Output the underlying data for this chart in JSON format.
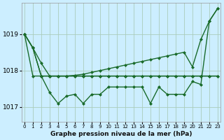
{
  "title": "Graphe pression niveau de la mer (hPa)",
  "background_color": "#cceeff",
  "grid_color": "#aaccbb",
  "line_color": "#1a6b2a",
  "x_labels": [
    "0",
    "1",
    "2",
    "3",
    "4",
    "5",
    "6",
    "7",
    "8",
    "9",
    "10",
    "11",
    "12",
    "13",
    "14",
    "15",
    "16",
    "17",
    "18",
    "19",
    "20",
    "21",
    "22",
    "23"
  ],
  "ylim": [
    1016.6,
    1019.85
  ],
  "yticks": [
    1017,
    1018,
    1019
  ],
  "marker": "D",
  "markersize": 2.0,
  "linewidth": 1.0,
  "s1": [
    1019.0,
    1018.62,
    1018.2,
    1017.85,
    1017.85,
    1017.85,
    1017.87,
    1017.9,
    1017.95,
    1018.0,
    1018.05,
    1018.1,
    1018.15,
    1018.2,
    1018.25,
    1018.3,
    1018.35,
    1018.4,
    1018.45,
    1018.5,
    1018.1,
    1018.85,
    1019.35,
    1019.7
  ],
  "s2": [
    1019.0,
    1018.62,
    1017.85,
    1017.85,
    1017.85,
    1017.85,
    1017.85,
    1017.85,
    1017.85,
    1017.85,
    1017.85,
    1017.85,
    1017.85,
    1017.85,
    1017.85,
    1017.85,
    1017.85,
    1017.85,
    1017.85,
    1017.85,
    1017.85,
    1017.85,
    1017.85,
    1017.85
  ],
  "s3": [
    1019.0,
    1018.62,
    1017.85,
    1017.4,
    1017.1,
    1017.3,
    1017.35,
    1017.1,
    1017.35,
    1017.35,
    1017.55,
    1017.55,
    1017.55,
    1017.55,
    1017.55,
    1017.1,
    1017.55,
    1017.35,
    1017.35,
    1017.35,
    1017.7,
    1017.62,
    1019.35,
    1019.7
  ],
  "s4": [
    1019.0,
    1017.85,
    1017.85,
    1017.85,
    1017.85,
    1017.85,
    1017.85,
    1017.85,
    1017.85,
    1017.85,
    1017.85,
    1017.85,
    1017.85,
    1017.85,
    1017.85,
    1017.85,
    1017.85,
    1017.85,
    1017.85,
    1017.85,
    1017.85,
    1017.85,
    1017.85,
    1017.85
  ]
}
